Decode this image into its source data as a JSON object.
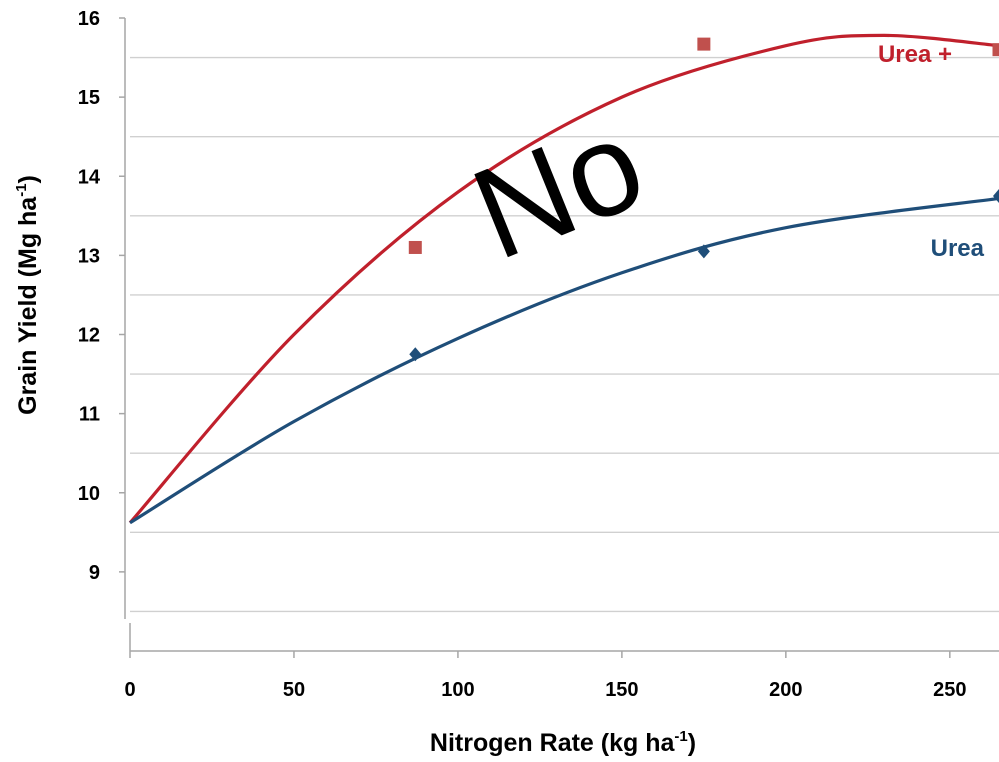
{
  "chart_data": {
    "type": "scatter",
    "xlabel": "Nitrogen Rate (kg ha-1)",
    "xlabel_parts": {
      "main": "Nitrogen Rate (kg ha",
      "sup": "-1",
      "end": ")"
    },
    "ylabel": "Grain Yield (Mg ha-1)",
    "ylabel_parts": {
      "main": "Grain Yield (Mg ha",
      "sup": "-1",
      "end": ")"
    },
    "xlim": [
      0,
      265
    ],
    "ylim": [
      8,
      16
    ],
    "x_ticks": [
      0,
      50,
      100,
      150,
      200,
      250
    ],
    "y_ticks": [
      9,
      10,
      11,
      12,
      13,
      14,
      15,
      16
    ],
    "grid": "horizontal",
    "series": [
      {
        "name": "Urea +",
        "color": "#c0504d",
        "line_color": "#c0202c",
        "marker": "square",
        "points": [
          [
            87,
            13.1
          ],
          [
            175,
            15.67
          ],
          [
            265,
            15.6
          ]
        ],
        "trend": "quadratic",
        "trend_curve": {
          "x": [
            0,
            50,
            100,
            150,
            200,
            230,
            265
          ],
          "y": [
            9.62,
            12.0,
            13.8,
            15.0,
            15.65,
            15.78,
            15.65
          ]
        }
      },
      {
        "name": "Urea",
        "color": "#1f4e79",
        "line_color": "#1f4e79",
        "marker": "diamond",
        "points": [
          [
            87,
            11.75
          ],
          [
            175,
            13.05
          ],
          [
            265,
            13.75
          ]
        ],
        "trend": "quadratic",
        "trend_curve": {
          "x": [
            0,
            50,
            100,
            150,
            200,
            265
          ],
          "y": [
            9.62,
            10.9,
            11.95,
            12.78,
            13.35,
            13.72
          ]
        }
      }
    ],
    "annotations": [
      {
        "text": "Urea +",
        "color": "#c0202c"
      },
      {
        "text": "Urea",
        "color": "#1f4e79"
      }
    ],
    "overlay_text": "No"
  }
}
